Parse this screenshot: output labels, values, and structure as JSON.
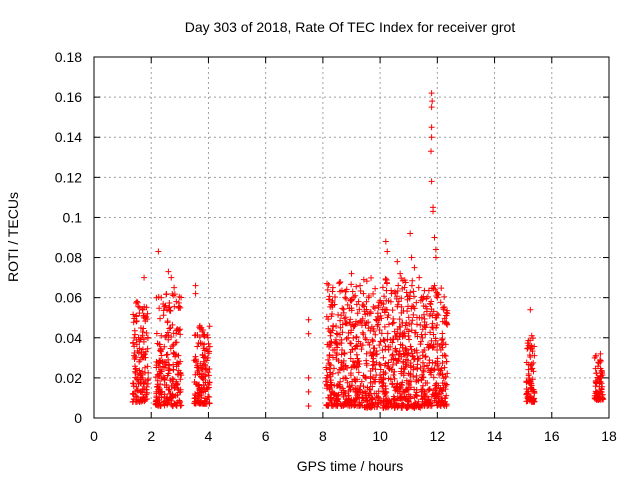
{
  "chart_data": {
    "type": "scatter",
    "title": "Day 303 of 2018, Rate Of TEC Index for receiver grot",
    "xlabel": "GPS time / hours",
    "ylabel": "ROTI / TECUs",
    "xlim": [
      0,
      18
    ],
    "ylim": [
      0,
      0.18
    ],
    "xticks": [
      "0",
      "2",
      "4",
      "6",
      "8",
      "10",
      "12",
      "14",
      "16",
      "18"
    ],
    "yticks": [
      "0",
      "0.02",
      "0.04",
      "0.06",
      "0.08",
      "0.1",
      "0.12",
      "0.14",
      "0.16",
      "0.18"
    ],
    "grid": true,
    "marker": "+",
    "color": "#ff0000",
    "point_distribution": {
      "note": "dense point clouds; values are per-point samples (x in hours, y in TECUs)",
      "clusters": [
        {
          "x": [
            1.35,
            1.9
          ],
          "y": [
            0.008,
            0.058
          ]
        },
        {
          "x": [
            2.15,
            3.05
          ],
          "y": [
            0.006,
            0.062
          ]
        },
        {
          "x": [
            3.5,
            4.05
          ],
          "y": [
            0.007,
            0.046
          ]
        },
        {
          "x": [
            8.1,
            9.4
          ],
          "y": [
            0.006,
            0.068
          ]
        },
        {
          "x": [
            9.4,
            11.5
          ],
          "y": [
            0.005,
            0.07
          ]
        },
        {
          "x": [
            11.5,
            12.35
          ],
          "y": [
            0.006,
            0.065
          ]
        },
        {
          "x": [
            15.1,
            15.4
          ],
          "y": [
            0.008,
            0.04
          ]
        },
        {
          "x": [
            17.5,
            17.8
          ],
          "y": [
            0.009,
            0.032
          ]
        }
      ],
      "points": [
        [
          1.5,
          0.058
        ],
        [
          1.6,
          0.055
        ],
        [
          1.75,
          0.07
        ],
        [
          1.8,
          0.05
        ],
        [
          2.25,
          0.083
        ],
        [
          2.35,
          0.06
        ],
        [
          2.6,
          0.073
        ],
        [
          2.7,
          0.07
        ],
        [
          2.8,
          0.065
        ],
        [
          2.95,
          0.055
        ],
        [
          3.55,
          0.066
        ],
        [
          3.55,
          0.062
        ],
        [
          3.75,
          0.045
        ],
        [
          7.5,
          0.049
        ],
        [
          7.5,
          0.042
        ],
        [
          7.5,
          0.02
        ],
        [
          7.5,
          0.013
        ],
        [
          7.5,
          0.006
        ],
        [
          8.35,
          0.065
        ],
        [
          8.6,
          0.063
        ],
        [
          9.0,
          0.072
        ],
        [
          9.3,
          0.066
        ],
        [
          9.6,
          0.06
        ],
        [
          10.2,
          0.088
        ],
        [
          10.25,
          0.083
        ],
        [
          10.4,
          0.062
        ],
        [
          10.6,
          0.078
        ],
        [
          10.7,
          0.072
        ],
        [
          11.05,
          0.092
        ],
        [
          11.1,
          0.08
        ],
        [
          11.2,
          0.075
        ],
        [
          11.35,
          0.065
        ],
        [
          11.45,
          0.06
        ],
        [
          11.8,
          0.162
        ],
        [
          11.82,
          0.158
        ],
        [
          11.8,
          0.155
        ],
        [
          11.8,
          0.145
        ],
        [
          11.8,
          0.14
        ],
        [
          11.78,
          0.133
        ],
        [
          11.8,
          0.118
        ],
        [
          11.85,
          0.105
        ],
        [
          11.85,
          0.103
        ],
        [
          11.9,
          0.09
        ],
        [
          11.95,
          0.084
        ],
        [
          11.95,
          0.08
        ],
        [
          11.9,
          0.066
        ],
        [
          12.0,
          0.06
        ],
        [
          12.2,
          0.055
        ],
        [
          15.25,
          0.054
        ],
        [
          15.3,
          0.041
        ],
        [
          15.25,
          0.035
        ],
        [
          17.7,
          0.032
        ],
        [
          17.7,
          0.028
        ],
        [
          17.75,
          0.023
        ],
        [
          17.7,
          0.018
        ]
      ]
    }
  }
}
